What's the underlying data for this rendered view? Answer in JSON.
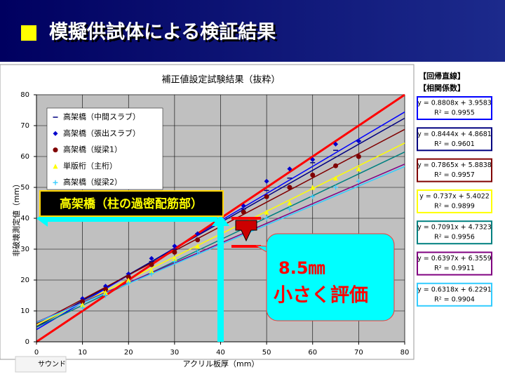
{
  "slide_title": "模擬供試体による検証結果",
  "footer": "サウンド",
  "chart_data": {
    "type": "scatter",
    "title": "補正値設定試験結果（抜粋）",
    "x_label": "アクリル板厚（mm）",
    "y_label": "非破壊測定値（mm）",
    "xlim": [
      0,
      80
    ],
    "xticks": [
      0,
      10,
      20,
      30,
      40,
      50,
      60,
      70,
      80
    ],
    "ylim": [
      0,
      80
    ],
    "yticks": [
      0,
      10,
      20,
      30,
      40,
      50,
      60,
      70,
      80
    ],
    "grid": true,
    "legend": "upper left",
    "plot_color": "#c0c0c0",
    "x": [
      10,
      15,
      20,
      25,
      30,
      35,
      40,
      45,
      50,
      55,
      60,
      65,
      70
    ],
    "series": [
      {
        "name": "高架橋（中間スラブ）",
        "color": "#000080",
        "marker": "dash",
        "values": [
          13,
          17,
          22,
          26,
          30,
          35,
          39,
          43,
          49,
          53,
          58,
          62,
          65
        ]
      },
      {
        "name": "高架橋（張出スラブ）",
        "color": "#0000cc",
        "marker": "diamond",
        "values": [
          14,
          18,
          22,
          27,
          31,
          35,
          39,
          44,
          52,
          56,
          59,
          64,
          65
        ]
      },
      {
        "name": "高架橋（縦梁1）",
        "color": "#800000",
        "marker": "circle",
        "values": [
          13,
          17,
          21,
          25,
          29,
          33,
          37,
          42,
          47,
          50,
          54,
          57,
          60
        ]
      },
      {
        "name": "単版桁（主桁）",
        "color": "#ffff00",
        "marker": "triangle",
        "values": [
          12,
          16,
          20,
          23,
          27,
          31,
          35,
          38,
          42,
          45,
          50,
          53,
          56
        ]
      },
      {
        "name": "高架橋（縦梁2）",
        "color": "#33ccff",
        "marker": "plus",
        "values": [
          11,
          15,
          19,
          22,
          26,
          29,
          33,
          36,
          40,
          43,
          47,
          50,
          52
        ]
      }
    ],
    "reference_line": {
      "x": [
        0,
        80
      ],
      "values": [
        0,
        80
      ],
      "color": "#ff0000"
    },
    "fit_header": [
      "【回帰直線】",
      "【相関係数】"
    ],
    "fits": [
      {
        "equation": "y = 0.8808x + 3.9583",
        "r2": "R² = 0.9955",
        "color": "#0000ff",
        "x": [
          0,
          80
        ],
        "values": [
          3.96,
          74.42
        ]
      },
      {
        "equation": "y = 0.8444x + 4.8681",
        "r2": "R² = 0.9601",
        "color": "#000080",
        "x": [
          0,
          80
        ],
        "values": [
          4.87,
          72.42
        ]
      },
      {
        "equation": "y = 0.7865x + 5.8838",
        "r2": "R² = 0.9957",
        "color": "#800000",
        "x": [
          0,
          80
        ],
        "values": [
          5.88,
          68.8
        ]
      },
      {
        "equation": "y = 0.737x + 5.4022",
        "r2": "R² = 0.9899",
        "color": "#ffff00",
        "x": [
          0,
          80
        ],
        "values": [
          5.4,
          64.36
        ]
      },
      {
        "equation": "y = 0.7091x + 4.7323",
        "r2": "R² = 0.9956",
        "color": "#008080",
        "x": [
          0,
          80
        ],
        "values": [
          4.73,
          61.46
        ]
      },
      {
        "equation": "y = 0.6397x + 6.3559",
        "r2": "R² = 0.9911",
        "color": "#800080",
        "x": [
          0,
          80
        ],
        "values": [
          6.36,
          57.53
        ]
      },
      {
        "equation": "y = 0.6318x + 6.2291",
        "r2": "R² = 0.9904",
        "color": "#33ccff",
        "x": [
          0,
          80
        ],
        "values": [
          6.23,
          56.77
        ]
      }
    ],
    "annotations": {
      "callout": "高架橋（柱の過密配筋部）",
      "difference": "8.5㎜",
      "note": "小さく評価"
    }
  }
}
